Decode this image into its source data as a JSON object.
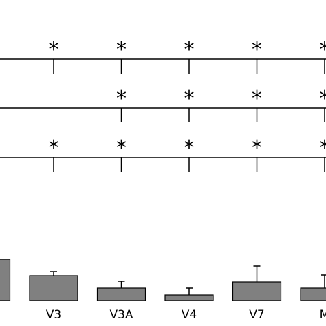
{
  "chart_data": {
    "type": "bar",
    "categories": [
      null,
      "V3",
      "V3A",
      "V4",
      "V7",
      "M"
    ],
    "values": [
      60,
      36,
      18,
      8,
      27,
      18
    ],
    "errors": [
      null,
      6,
      10,
      10,
      23,
      19
    ],
    "color": "#808080",
    "ylim": [
      0,
      60
    ],
    "significance": [
      {
        "stars": [
          null,
          "*",
          "*",
          "*",
          "*",
          "*"
        ]
      },
      {
        "stars": [
          null,
          null,
          "*",
          "*",
          "*",
          "*"
        ]
      },
      {
        "stars": [
          null,
          "*",
          "*",
          "*",
          "*",
          "*"
        ]
      }
    ]
  }
}
